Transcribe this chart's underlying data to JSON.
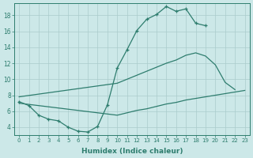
{
  "xlabel": "Humidex (Indice chaleur)",
  "bg_color": "#cce8e8",
  "grid_color": "#aacccc",
  "line_color": "#2e7d6e",
  "line1_x": [
    0,
    1,
    2,
    3,
    4,
    5,
    6,
    7,
    8,
    9,
    10,
    11,
    12,
    13,
    14,
    15,
    16,
    17,
    18,
    19
  ],
  "line1_y": [
    7.2,
    6.7,
    5.5,
    5.0,
    4.8,
    4.0,
    3.5,
    3.4,
    4.1,
    6.8,
    11.4,
    13.7,
    16.1,
    17.5,
    18.1,
    19.1,
    18.5,
    18.8,
    17.0,
    16.7
  ],
  "line2_x": [
    0,
    10,
    11,
    12,
    13,
    14,
    15,
    16,
    17,
    18,
    19,
    20,
    21,
    22
  ],
  "line2_y": [
    7.8,
    9.5,
    10.0,
    10.5,
    11.0,
    11.5,
    12.0,
    12.4,
    13.0,
    13.3,
    12.9,
    11.8,
    9.6,
    8.7
  ],
  "line3_x": [
    0,
    10,
    11,
    12,
    13,
    14,
    15,
    16,
    17,
    18,
    19,
    20,
    21,
    22,
    23
  ],
  "line3_y": [
    7.0,
    5.5,
    5.8,
    6.1,
    6.3,
    6.6,
    6.9,
    7.1,
    7.4,
    7.6,
    7.8,
    8.0,
    8.2,
    8.4,
    8.6
  ],
  "ylim": [
    3,
    19.5
  ],
  "xlim": [
    -0.5,
    23.5
  ],
  "yticks": [
    4,
    6,
    8,
    10,
    12,
    14,
    16,
    18
  ],
  "xticks": [
    0,
    1,
    2,
    3,
    4,
    5,
    6,
    7,
    8,
    9,
    10,
    11,
    12,
    13,
    14,
    15,
    16,
    17,
    18,
    19,
    20,
    21,
    22,
    23
  ]
}
